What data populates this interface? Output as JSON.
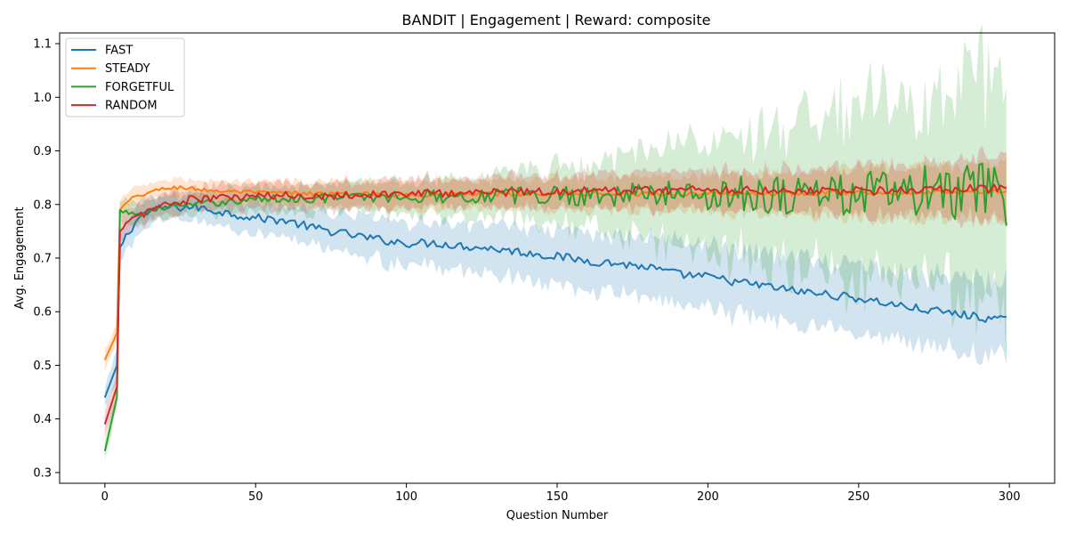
{
  "chart_data": {
    "type": "line",
    "title": "BANDIT | Engagement | Reward: composite",
    "xlabel": "Question Number",
    "ylabel": "Avg. Engagement",
    "xlim": [
      -15,
      315
    ],
    "ylim": [
      0.28,
      1.12
    ],
    "xticks": [
      0,
      50,
      100,
      150,
      200,
      250,
      300
    ],
    "yticks": [
      0.3,
      0.4,
      0.5,
      0.6,
      0.7,
      0.8,
      0.9,
      1.0,
      1.1
    ],
    "legend_position": "upper-left",
    "grid": false,
    "series": [
      {
        "name": "FAST",
        "color": "#1f77b4",
        "keypoints": [
          [
            0,
            0.44
          ],
          [
            4,
            0.5
          ],
          [
            5,
            0.72
          ],
          [
            8,
            0.75
          ],
          [
            12,
            0.78
          ],
          [
            20,
            0.795
          ],
          [
            30,
            0.795
          ],
          [
            40,
            0.785
          ],
          [
            50,
            0.775
          ],
          [
            60,
            0.77
          ],
          [
            70,
            0.755
          ],
          [
            80,
            0.745
          ],
          [
            90,
            0.735
          ],
          [
            100,
            0.728
          ],
          [
            110,
            0.728
          ],
          [
            120,
            0.722
          ],
          [
            130,
            0.717
          ],
          [
            140,
            0.71
          ],
          [
            150,
            0.703
          ],
          [
            160,
            0.695
          ],
          [
            170,
            0.69
          ],
          [
            180,
            0.683
          ],
          [
            190,
            0.67
          ],
          [
            200,
            0.665
          ],
          [
            210,
            0.655
          ],
          [
            220,
            0.647
          ],
          [
            230,
            0.638
          ],
          [
            240,
            0.632
          ],
          [
            250,
            0.625
          ],
          [
            260,
            0.615
          ],
          [
            270,
            0.605
          ],
          [
            280,
            0.598
          ],
          [
            290,
            0.59
          ],
          [
            300,
            0.582
          ]
        ],
        "band_keypoints": [
          [
            0,
            0.02
          ],
          [
            5,
            0.03
          ],
          [
            20,
            0.02
          ],
          [
            50,
            0.03
          ],
          [
            100,
            0.04
          ],
          [
            150,
            0.05
          ],
          [
            200,
            0.06
          ],
          [
            250,
            0.06
          ],
          [
            300,
            0.07
          ]
        ],
        "noise": 0.004
      },
      {
        "name": "STEADY",
        "color": "#ff7f0e",
        "keypoints": [
          [
            0,
            0.51
          ],
          [
            4,
            0.56
          ],
          [
            5,
            0.79
          ],
          [
            10,
            0.815
          ],
          [
            20,
            0.83
          ],
          [
            25,
            0.832
          ],
          [
            35,
            0.826
          ],
          [
            50,
            0.822
          ],
          [
            100,
            0.818
          ],
          [
            150,
            0.82
          ],
          [
            200,
            0.82
          ],
          [
            250,
            0.822
          ],
          [
            300,
            0.825
          ]
        ],
        "band_keypoints": [
          [
            0,
            0.02
          ],
          [
            5,
            0.02
          ],
          [
            20,
            0.015
          ],
          [
            50,
            0.02
          ],
          [
            100,
            0.025
          ],
          [
            150,
            0.03
          ],
          [
            200,
            0.035
          ],
          [
            250,
            0.045
          ],
          [
            300,
            0.05
          ]
        ],
        "noise": 0.002
      },
      {
        "name": "FORGETFUL",
        "color": "#2ca02c",
        "keypoints": [
          [
            0,
            0.34
          ],
          [
            4,
            0.44
          ],
          [
            5,
            0.79
          ],
          [
            10,
            0.78
          ],
          [
            20,
            0.795
          ],
          [
            30,
            0.8
          ],
          [
            50,
            0.81
          ],
          [
            100,
            0.815
          ],
          [
            150,
            0.818
          ],
          [
            200,
            0.82
          ],
          [
            250,
            0.82
          ],
          [
            300,
            0.82
          ]
        ],
        "band_keypoints": [
          [
            0,
            0.02
          ],
          [
            5,
            0.02
          ],
          [
            30,
            0.02
          ],
          [
            60,
            0.025
          ],
          [
            100,
            0.03
          ],
          [
            130,
            0.04
          ],
          [
            160,
            0.06
          ],
          [
            200,
            0.1
          ],
          [
            220,
            0.13
          ],
          [
            250,
            0.16
          ],
          [
            280,
            0.19
          ],
          [
            300,
            0.22
          ]
        ],
        "noise_keypoints": [
          [
            0,
            0.002
          ],
          [
            60,
            0.004
          ],
          [
            130,
            0.008
          ],
          [
            180,
            0.012
          ],
          [
            220,
            0.02
          ],
          [
            260,
            0.025
          ],
          [
            300,
            0.03
          ]
        ]
      },
      {
        "name": "RANDOM",
        "color": "#d62728",
        "keypoints": [
          [
            0,
            0.39
          ],
          [
            4,
            0.46
          ],
          [
            5,
            0.75
          ],
          [
            10,
            0.775
          ],
          [
            15,
            0.79
          ],
          [
            20,
            0.8
          ],
          [
            30,
            0.81
          ],
          [
            50,
            0.815
          ],
          [
            100,
            0.82
          ],
          [
            150,
            0.825
          ],
          [
            200,
            0.828
          ],
          [
            250,
            0.825
          ],
          [
            300,
            0.83
          ]
        ],
        "band_keypoints": [
          [
            0,
            0.02
          ],
          [
            5,
            0.02
          ],
          [
            20,
            0.02
          ],
          [
            60,
            0.025
          ],
          [
            100,
            0.025
          ],
          [
            150,
            0.03
          ],
          [
            200,
            0.035
          ],
          [
            250,
            0.045
          ],
          [
            300,
            0.06
          ]
        ],
        "noise": 0.004
      }
    ]
  }
}
